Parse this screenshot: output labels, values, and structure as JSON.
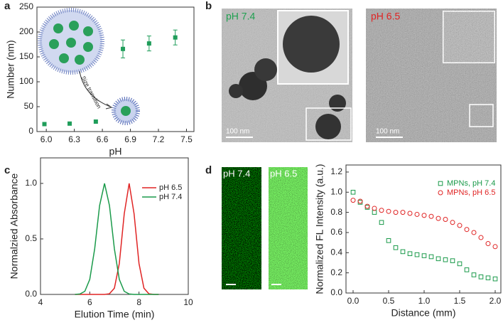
{
  "panel_labels": [
    "a",
    "b",
    "c",
    "d"
  ],
  "images": [
    {
      "label": "pH 7.4",
      "scale_bar": "100 nm"
    },
    {
      "label": "pH 6.5",
      "scale_bar": "100 nm"
    },
    {
      "label": "pH 7.4"
    },
    {
      "label": "pH 6.5"
    }
  ],
  "chart_data": [
    {
      "type": "scatter",
      "x_label": "pH",
      "y_label": "Number (nm)",
      "annotation": "Size transition",
      "x": [
        5.98,
        6.25,
        6.53,
        6.82,
        7.1,
        7.38
      ],
      "values": [
        15,
        16,
        20,
        166,
        177,
        189
      ],
      "errors": [
        null,
        null,
        null,
        18,
        15,
        15
      ],
      "color": "#1f9d5a",
      "marker": "filled-square",
      "xlim": [
        5.9,
        7.58
      ],
      "xticks": [
        {
          "value": 6,
          "label": "6.0"
        },
        6.3,
        6.6,
        6.9,
        7.2,
        {
          "value": 7.5,
          "label": "7.5"
        }
      ],
      "ylim": [
        0,
        250
      ],
      "yticks": [
        0,
        50,
        100,
        150,
        200,
        250
      ]
    },
    {
      "type": "line",
      "x_label": "Elution Time (min)",
      "y_label": "Normalzied Absorbance",
      "legend": "upper right",
      "x": [
        5.4,
        5.6,
        5.8,
        6.0,
        6.2,
        6.4,
        6.6,
        6.8,
        7.0,
        7.2,
        7.4,
        7.6,
        7.8,
        8.0,
        8.2,
        8.4,
        8.6,
        8.8
      ],
      "series": [
        {
          "name": "pH 6.5",
          "color": "#e02424",
          "values": [
            0,
            0,
            0,
            0,
            0,
            0,
            0,
            0.006,
            0.056,
            0.278,
            0.726,
            1,
            0.726,
            0.278,
            0.056,
            0.006,
            0,
            0
          ]
        },
        {
          "name": "pH 7.4",
          "color": "#1a9a4a",
          "values": [
            0,
            0.004,
            0.028,
            0.135,
            0.411,
            0.801,
            1,
            0.801,
            0.411,
            0.135,
            0.028,
            0.004,
            0,
            0,
            0,
            0,
            0,
            0
          ]
        }
      ],
      "xlim": [
        4,
        10
      ],
      "xticks": [
        4,
        6,
        8,
        10
      ],
      "ylim": [
        0,
        1.23
      ],
      "yticks": [
        {
          "value": 0,
          "label": "0.0"
        },
        0.5,
        {
          "value": 1,
          "label": "1.0"
        }
      ]
    },
    {
      "type": "scatter",
      "x_label": "Distance (mm)",
      "y_label": "Normalized FL Intensity (a.u.)",
      "legend": "upper right",
      "x": [
        0,
        0.1,
        0.2,
        0.3,
        0.4,
        0.5,
        0.6,
        0.7,
        0.8,
        0.9,
        1.0,
        1.1,
        1.2,
        1.3,
        1.4,
        1.5,
        1.6,
        1.7,
        1.8,
        1.9,
        2.0
      ],
      "series": [
        {
          "name": "MPNs, pH 7.4",
          "color": "#1a9a4a",
          "marker": "open-square",
          "values": [
            1.0,
            0.9,
            0.85,
            0.8,
            0.7,
            0.52,
            0.45,
            0.41,
            0.39,
            0.38,
            0.37,
            0.36,
            0.34,
            0.33,
            0.32,
            0.29,
            0.23,
            0.18,
            0.16,
            0.15,
            0.14
          ]
        },
        {
          "name": "MPNs, pH 6.5",
          "color": "#e02424",
          "marker": "open-circle",
          "values": [
            0.92,
            0.91,
            0.86,
            0.84,
            0.82,
            0.81,
            0.8,
            0.8,
            0.79,
            0.78,
            0.77,
            0.76,
            0.74,
            0.73,
            0.7,
            0.67,
            0.63,
            0.6,
            0.55,
            0.49,
            0.46
          ]
        }
      ],
      "xlim": [
        -0.1,
        2.08
      ],
      "xticks": [
        {
          "value": 0,
          "label": "0.0"
        },
        0.5,
        {
          "value": 1,
          "label": "1.0"
        },
        1.5,
        {
          "value": 2,
          "label": "2.0"
        }
      ],
      "ylim": [
        0,
        1.27
      ],
      "yticks": [
        {
          "value": 0,
          "label": "0.0"
        },
        0.2,
        0.4,
        0.6,
        0.8,
        {
          "value": 1,
          "label": "1.0"
        },
        1.2
      ]
    }
  ]
}
